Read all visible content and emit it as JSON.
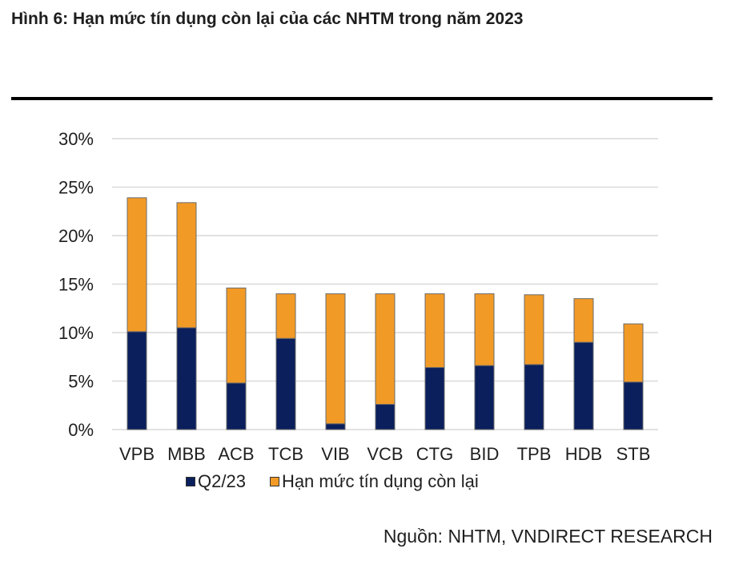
{
  "figure_title": "Hình 6: Hạn mức tín dụng còn lại của các NHTM trong năm 2023",
  "source": "Nguồn: NHTM, VNDIRECT RESEARCH",
  "colors": {
    "series_q2": "#0a1f5c",
    "series_remaining": "#f29a26",
    "grid": "#d9d9d9",
    "bar_outline": "#6b6b6b"
  },
  "chart_data": {
    "type": "bar",
    "stacked": true,
    "title": "",
    "xlabel": "",
    "ylabel": "",
    "ylim": [
      0,
      30
    ],
    "yticks": [
      {
        "value": 0,
        "label": "0%"
      },
      {
        "value": 5,
        "label": "5%"
      },
      {
        "value": 10,
        "label": "10%"
      },
      {
        "value": 15,
        "label": "15%"
      },
      {
        "value": 20,
        "label": "20%"
      },
      {
        "value": 25,
        "label": "25%"
      },
      {
        "value": 30,
        "label": "30%"
      }
    ],
    "grid": true,
    "legend_position": "bottom-left",
    "categories": [
      "VPB",
      "MBB",
      "ACB",
      "TCB",
      "VIB",
      "VCB",
      "CTG",
      "BID",
      "TPB",
      "HDB",
      "STB"
    ],
    "series": [
      {
        "name": "Q2/23",
        "values": [
          10.1,
          10.5,
          4.8,
          9.4,
          0.6,
          2.6,
          6.4,
          6.6,
          6.7,
          9.0,
          4.9
        ]
      },
      {
        "name": "Hạn mức tín dụng còn lại",
        "values": [
          13.8,
          12.9,
          9.8,
          4.6,
          13.4,
          11.4,
          7.6,
          7.4,
          7.2,
          4.5,
          6.0
        ]
      }
    ]
  }
}
